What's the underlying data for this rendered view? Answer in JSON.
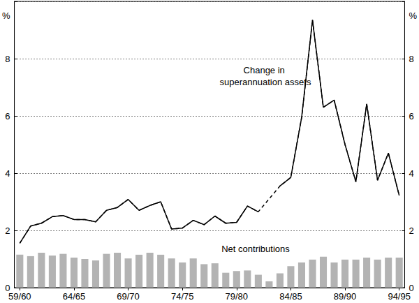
{
  "chart_data": {
    "type": "combo",
    "ylabel": "%",
    "categories": [
      "59/60",
      null,
      null,
      null,
      null,
      "64/65",
      null,
      null,
      null,
      null,
      "69/70",
      null,
      null,
      null,
      null,
      "74/75",
      null,
      null,
      null,
      null,
      "79/80",
      null,
      null,
      null,
      null,
      "84/85",
      null,
      null,
      null,
      null,
      "89/90",
      null,
      null,
      null,
      null,
      "94/95"
    ],
    "series": [
      {
        "name": "Net contributions",
        "type": "bar",
        "color": "#b3b3b3",
        "values": [
          1.15,
          1.1,
          1.22,
          1.12,
          1.18,
          1.05,
          1.0,
          0.95,
          1.18,
          1.22,
          1.02,
          1.15,
          1.22,
          1.15,
          1.02,
          0.88,
          1.02,
          0.82,
          0.85,
          0.52,
          0.58,
          0.6,
          0.45,
          0.22,
          0.5,
          0.75,
          0.88,
          0.98,
          1.08,
          0.88,
          0.98,
          0.98,
          1.05,
          0.98,
          1.05,
          1.05
        ]
      },
      {
        "name": "Change in superannuation assets",
        "type": "line",
        "color": "#000000",
        "line_style": "solid",
        "values": [
          1.55,
          2.15,
          2.25,
          2.48,
          2.52,
          2.38,
          2.38,
          2.3,
          2.7,
          2.8,
          3.08,
          2.7,
          2.87,
          3.0,
          2.05,
          2.08,
          2.35,
          2.2,
          2.5,
          2.25,
          2.28,
          2.85,
          2.65,
          null,
          3.55,
          3.85,
          5.95,
          9.35,
          6.3,
          6.55,
          5.0,
          3.7,
          6.42,
          3.75,
          4.7,
          3.22
        ]
      }
    ],
    "ylim": [
      0,
      10
    ],
    "yticks": [
      0,
      2,
      4,
      6,
      8
    ],
    "y2lim": [
      0,
      10
    ],
    "y2ticks": [
      0,
      2,
      4,
      6,
      8
    ],
    "grid": true
  }
}
